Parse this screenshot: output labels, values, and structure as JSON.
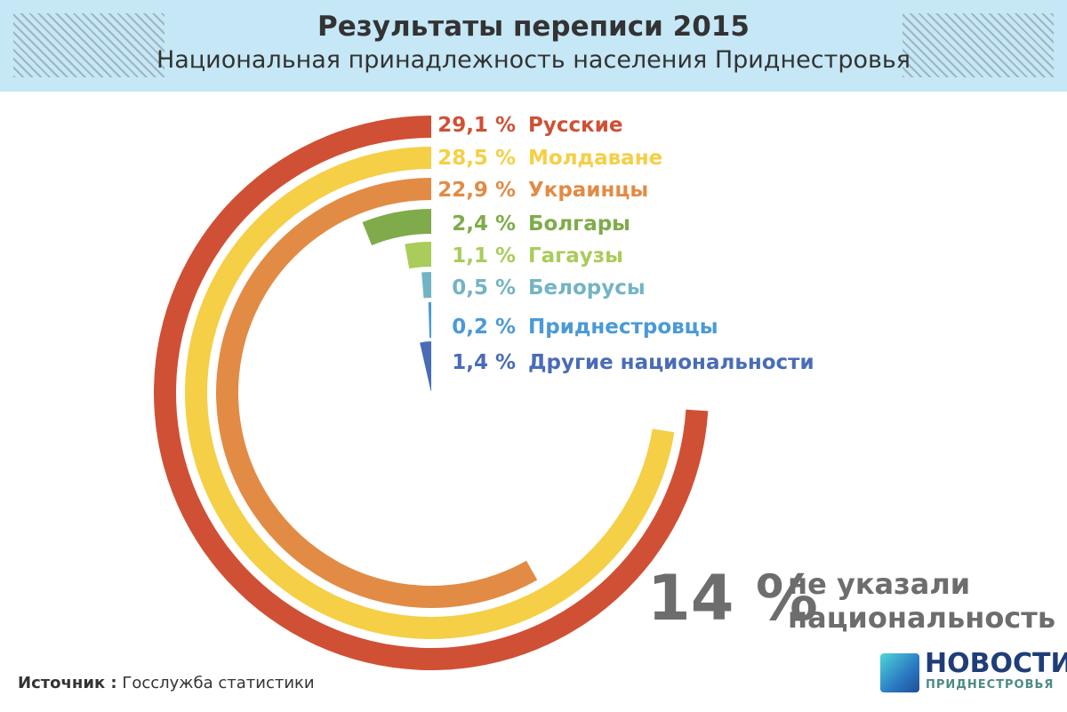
{
  "header": {
    "title": "Результаты переписи 2015",
    "subtitle": "Национальная принадлежность населения Приднестровья"
  },
  "chart_data": {
    "type": "radial-bar",
    "unit": "%",
    "categories": [
      "Русские",
      "Молдаване",
      "Украинцы",
      "Болгары",
      "Гагаузы",
      "Белорусы",
      "Приднестровцы",
      "Другие национальности"
    ],
    "values": [
      29.1,
      28.5,
      22.9,
      2.4,
      1.1,
      0.5,
      0.2,
      1.4
    ],
    "value_labels": [
      "29,1 %",
      "28,5 %",
      "22,9 %",
      "2,4 %",
      "1,1 %",
      "0,5 %",
      "0,2 %",
      "1,4 %"
    ],
    "colors": [
      "#d05035",
      "#f5cf45",
      "#e28b45",
      "#7fab4a",
      "#a9cc5a",
      "#73b4c4",
      "#4a9ad8",
      "#4a6cb7"
    ]
  },
  "note": {
    "value": "14 %",
    "line1": "не указали",
    "line2": "национальность"
  },
  "source": {
    "label": "Источник :",
    "text": "Госслужба статистики"
  },
  "logo": {
    "line1": "НОВОСТИ",
    "line2": "ПРИДНЕСТРОВЬЯ"
  }
}
